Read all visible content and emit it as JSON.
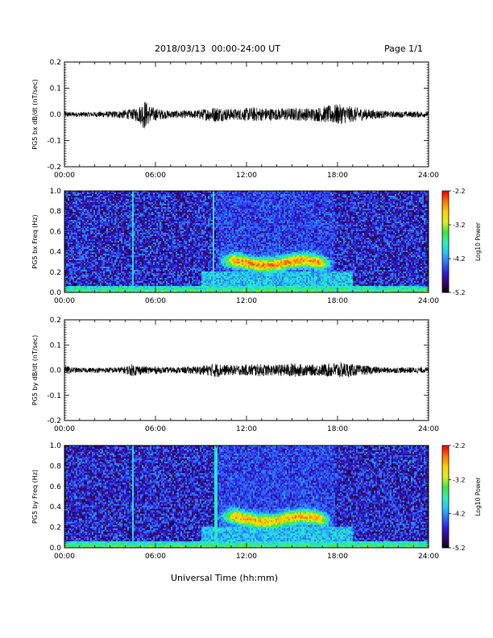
{
  "header": {
    "title": "2018/03/13  00:00-24:00 UT",
    "page": "Page 1/1"
  },
  "colors": {
    "trace": "#000000",
    "cmap": [
      "#000000",
      "#3a0070",
      "#2a1fd8",
      "#2f6cff",
      "#22c8ff",
      "#2ef0b4",
      "#3ce63a",
      "#d8f01c",
      "#ffd000",
      "#ff7a00",
      "#ff0000"
    ]
  },
  "chart_data": [
    {
      "type": "line",
      "id": "bx-ts",
      "ylabel": "PG5 bx dB/dt (nT/sec)",
      "ylim": [
        -0.2,
        0.2
      ],
      "y_ticks": [
        "0.2",
        "0.1",
        "0.0",
        "-0.1",
        "-0.2"
      ],
      "x_ticks": [
        "00:00",
        "06:00",
        "12:00",
        "18:00",
        "24:00"
      ],
      "xlim_hours": [
        0,
        24
      ],
      "series": [
        {
          "x_hours": [
            0,
            0.5,
            1,
            1.5,
            2,
            2.5,
            3,
            3.5,
            4,
            4.5,
            5,
            5.25,
            5.5,
            5.75,
            6,
            6.5,
            7,
            7.5,
            8,
            8.5,
            9,
            9.5,
            10,
            10.5,
            11,
            11.5,
            12,
            12.5,
            13,
            13.5,
            14,
            14.5,
            15,
            15.5,
            16,
            16.5,
            17,
            17.5,
            18,
            18.5,
            19,
            19.5,
            20,
            20.5,
            21,
            21.5,
            22,
            22.5,
            23,
            23.5,
            24
          ],
          "amplitude": [
            0.012,
            0.01,
            0.01,
            0.01,
            0.01,
            0.012,
            0.012,
            0.015,
            0.018,
            0.02,
            0.035,
            0.06,
            0.04,
            0.03,
            0.025,
            0.018,
            0.015,
            0.015,
            0.015,
            0.015,
            0.02,
            0.025,
            0.03,
            0.025,
            0.022,
            0.022,
            0.025,
            0.028,
            0.025,
            0.025,
            0.022,
            0.025,
            0.025,
            0.025,
            0.025,
            0.025,
            0.03,
            0.035,
            0.04,
            0.035,
            0.03,
            0.025,
            0.02,
            0.018,
            0.015,
            0.012,
            0.012,
            0.012,
            0.012,
            0.012,
            0.01
          ]
        }
      ]
    },
    {
      "type": "heatmap",
      "id": "bx-spec",
      "ylabel": "PG5 bx Freq (Hz)",
      "ylim": [
        0.0,
        1.0
      ],
      "y_ticks": [
        "1.0",
        "0.8",
        "0.6",
        "0.4",
        "0.2",
        "0.0"
      ],
      "x_ticks": [
        "00:00",
        "06:00",
        "12:00",
        "18:00",
        "24:00"
      ],
      "xlim_hours": [
        0,
        24
      ],
      "colorbar": {
        "label": "Log10 Power",
        "range": [
          -5.2,
          -2.2
        ],
        "ticks": [
          "-2.2",
          "-3.2",
          "-4.2",
          "-5.2"
        ]
      },
      "background_log_power": -4.6,
      "features": [
        {
          "kind": "band",
          "t_start": 10.0,
          "t_end": 17.8,
          "f_center": 0.29,
          "f_width": 0.07,
          "log_power": -2.6
        },
        {
          "kind": "low_freq",
          "f_max": 0.06,
          "log_power": -3.4
        },
        {
          "kind": "vertical_line",
          "t": 4.5,
          "log_power": -3.9
        },
        {
          "kind": "vertical_line",
          "t": 9.8,
          "log_power": -3.8
        }
      ]
    },
    {
      "type": "line",
      "id": "by-ts",
      "ylabel": "PG5 by dB/dt (nT/sec)",
      "ylim": [
        -0.2,
        0.2
      ],
      "y_ticks": [
        "0.2",
        "0.1",
        "0.0",
        "-0.1",
        "-0.2"
      ],
      "x_ticks": [
        "00:00",
        "06:00",
        "12:00",
        "18:00",
        "24:00"
      ],
      "xlim_hours": [
        0,
        24
      ],
      "series": [
        {
          "x_hours": [
            0,
            0.5,
            1,
            1.5,
            2,
            2.5,
            3,
            3.5,
            4,
            4.5,
            5,
            5.5,
            6,
            6.5,
            7,
            7.5,
            8,
            8.5,
            9,
            9.5,
            10,
            10.5,
            11,
            11.5,
            12,
            12.5,
            13,
            13.5,
            14,
            14.5,
            15,
            15.5,
            16,
            16.5,
            17,
            17.5,
            18,
            18.5,
            19,
            19.5,
            20,
            20.5,
            21,
            21.5,
            22,
            22.5,
            23,
            23.5,
            24
          ],
          "amplitude": [
            0.018,
            0.012,
            0.01,
            0.01,
            0.01,
            0.01,
            0.012,
            0.012,
            0.015,
            0.025,
            0.018,
            0.015,
            0.015,
            0.012,
            0.012,
            0.012,
            0.014,
            0.015,
            0.018,
            0.022,
            0.03,
            0.022,
            0.02,
            0.02,
            0.022,
            0.025,
            0.025,
            0.022,
            0.022,
            0.025,
            0.03,
            0.025,
            0.022,
            0.022,
            0.025,
            0.028,
            0.032,
            0.03,
            0.025,
            0.02,
            0.018,
            0.015,
            0.012,
            0.012,
            0.012,
            0.012,
            0.012,
            0.012,
            0.01
          ]
        }
      ]
    },
    {
      "type": "heatmap",
      "id": "by-spec",
      "ylabel": "PG5 by Freq (Hz)",
      "ylim": [
        0.0,
        1.0
      ],
      "y_ticks": [
        "1.0",
        "0.8",
        "0.6",
        "0.4",
        "0.2",
        "0.0"
      ],
      "x_ticks": [
        "00:00",
        "06:00",
        "12:00",
        "18:00",
        "24:00"
      ],
      "xlim_hours": [
        0,
        24
      ],
      "colorbar": {
        "label": "Log10 Power",
        "range": [
          -5.2,
          -2.2
        ],
        "ticks": [
          "-2.2",
          "-3.2",
          "-4.2",
          "-5.2"
        ]
      },
      "background_log_power": -4.6,
      "features": [
        {
          "kind": "band",
          "t_start": 10.0,
          "t_end": 17.8,
          "f_center": 0.28,
          "f_width": 0.07,
          "log_power": -2.7
        },
        {
          "kind": "low_freq",
          "f_max": 0.06,
          "log_power": -3.4
        },
        {
          "kind": "vertical_line",
          "t": 4.5,
          "log_power": -3.9
        },
        {
          "kind": "vertical_line",
          "t": 10.0,
          "log_power": -3.8
        }
      ]
    }
  ],
  "xlabel": "Universal Time (hh:mm)"
}
